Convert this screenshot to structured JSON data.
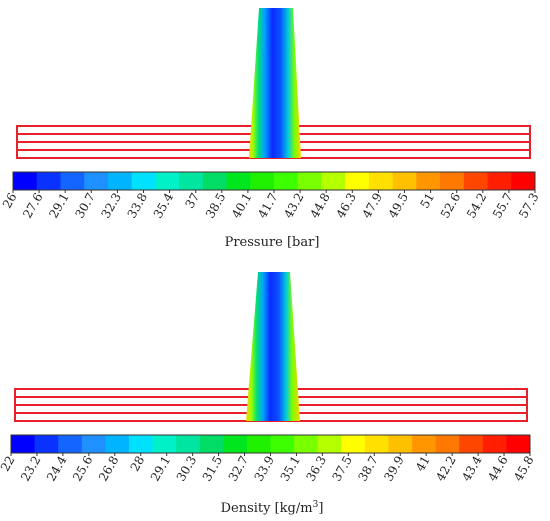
{
  "chart_data": [
    {
      "type": "heatmap",
      "field": "pressure",
      "colorbar_label": "Pressure [bar]",
      "colorbar_ticks": [
        "26",
        "27.6",
        "29.1",
        "30.7",
        "32.3",
        "33.8",
        "35.4",
        "37",
        "38.5",
        "40.1",
        "41.7",
        "43.2",
        "44.8",
        "46.3",
        "47.9",
        "49.5",
        "51",
        "52.6",
        "54.2",
        "55.7",
        "57.3"
      ],
      "vmin": 26,
      "vmax": 57.3,
      "colors": [
        "#0000ff",
        "#0a32ff",
        "#1464ff",
        "#1e90ff",
        "#00b4ff",
        "#00e0ff",
        "#00f0c8",
        "#00e6a0",
        "#00dc64",
        "#00e61e",
        "#1ef000",
        "#3cff00",
        "#78ff00",
        "#b4ff00",
        "#ffff00",
        "#ffe000",
        "#ffc000",
        "#ff9600",
        "#ff7800",
        "#ff4600",
        "#ff1e00",
        "#ff0000"
      ]
    },
    {
      "type": "heatmap",
      "field": "density",
      "colorbar_label": "Density [kg/m",
      "colorbar_label_sup": "3",
      "colorbar_label_end": "]",
      "colorbar_ticks": [
        "22",
        "23.2",
        "24.4",
        "25.6",
        "26.8",
        "28",
        "29.1",
        "30.3",
        "31.5",
        "32.7",
        "33.9",
        "35.1",
        "36.3",
        "37.5",
        "38.7",
        "39.9",
        "41",
        "42.2",
        "43.4",
        "44.6",
        "45.8"
      ],
      "vmin": 22,
      "vmax": 45.8,
      "colors": [
        "#0000ff",
        "#0a32ff",
        "#1464ff",
        "#1e90ff",
        "#00b4ff",
        "#00e0ff",
        "#00f0c8",
        "#00e6a0",
        "#00dc64",
        "#00e61e",
        "#1ef000",
        "#3cff00",
        "#78ff00",
        "#b4ff00",
        "#ffff00",
        "#ffe000",
        "#ffc000",
        "#ff9600",
        "#ff7800",
        "#ff4600",
        "#ff1e00",
        "#ff0000"
      ]
    }
  ]
}
